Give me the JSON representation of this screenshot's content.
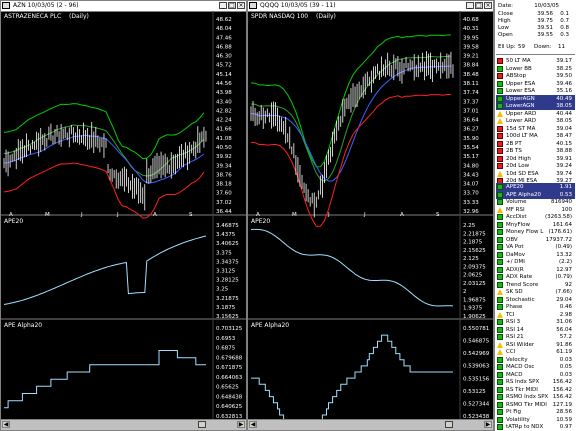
{
  "windows": [
    {
      "title": "AZN 10/03/05 (2 - 96)",
      "symbol_label": "ASTRAZENECA PLC",
      "period": "(Daily)",
      "months": [
        "A",
        "M",
        "J",
        "J",
        "A",
        "S"
      ],
      "price_ticks": [
        "48.62",
        "48.04",
        "47.46",
        "46.88",
        "46.30",
        "45.72",
        "45.14",
        "44.56",
        "43.98",
        "43.40",
        "42.82",
        "42.24",
        "41.66",
        "41.08",
        "40.50",
        "39.92",
        "39.34",
        "38.76",
        "38.18",
        "37.60",
        "37.02",
        "36.44"
      ],
      "panel2_label": "APE20",
      "panel2_ticks": [
        "3.46875",
        "3.4375",
        "3.40625",
        "3.375",
        "3.34375",
        "3.3125",
        "3.28125",
        "3.25",
        "3.21875",
        "3.1875",
        "3.15625"
      ],
      "panel3_label": "APE Alpha20",
      "panel3_ticks": [
        "0.703125",
        "0.6953",
        "0.6875",
        "0.679688",
        "0.671875",
        "0.664063",
        "0.65625",
        "0.648438",
        "0.640625",
        "0.632813"
      ]
    },
    {
      "title": "QQQQ 10/03/05 (39 - 11)",
      "symbol_label": "SPDR NASDAQ 100",
      "period": "(Daily)",
      "months": [
        "A",
        "M",
        "J",
        "J",
        "A",
        "S"
      ],
      "price_ticks": [
        "40.68",
        "40.31",
        "39.95",
        "39.58",
        "39.21",
        "38.84",
        "38.48",
        "38.11",
        "37.74",
        "37.37",
        "37.01",
        "36.64",
        "36.27",
        "35.90",
        "35.54",
        "35.17",
        "34.80",
        "34.43",
        "34.07",
        "33.70",
        "33.33",
        "32.96"
      ],
      "panel2_label": "APE20",
      "panel2_ticks": [
        "2.25",
        "2.21875",
        "2.1875",
        "2.15625",
        "2.125",
        "2.09375",
        "2.0625",
        "2.03125",
        "2",
        "1.96875",
        "1.9375",
        "1.90625"
      ],
      "panel3_label": "APE Alpha20",
      "panel3_ticks": [
        "0.550781",
        "0.546875",
        "0.542969",
        "0.539063",
        "0.535156",
        "0.53125",
        "0.527344",
        "0.523438"
      ]
    }
  ],
  "quote": {
    "date_label": "Date:",
    "date": "10/03/05",
    "rows": [
      {
        "k": "Close",
        "v": "39.56",
        "v2": "0.1"
      },
      {
        "k": "High",
        "v": "39.75",
        "v2": "0.7"
      },
      {
        "k": "Low",
        "v": "39.51",
        "v2": "0.8"
      },
      {
        "k": "Open",
        "v": "39.55",
        "v2": "0.3"
      }
    ],
    "ew_label": "Ell Up:",
    "ew_up": "59",
    "ew_down_label": "Down:",
    "ew_down": "11"
  },
  "signals_top": [
    {
      "icon": "red",
      "label": "50 LT MA",
      "value": "39.17"
    },
    {
      "icon": "green",
      "label": "Lower BB",
      "value": "38.25"
    },
    {
      "icon": "red",
      "label": "ABStop",
      "value": "39.50"
    },
    {
      "icon": "green",
      "label": "Upper ESA",
      "value": "39.46"
    },
    {
      "icon": "green",
      "label": "Lower ESA",
      "value": "35.16"
    },
    {
      "icon": "green",
      "label": "UpperAGN",
      "value": "40.49",
      "selected": true
    },
    {
      "icon": "green",
      "label": "LowerAGN",
      "value": "38.05",
      "selected": true
    },
    {
      "icon": "warn",
      "label": "Upper ARD",
      "value": "40.44"
    },
    {
      "icon": "warn",
      "label": "Lower ARD",
      "value": "38.05"
    },
    {
      "icon": "red",
      "label": "15d ST MA",
      "value": "39.04"
    },
    {
      "icon": "red",
      "label": "100d LT MA",
      "value": "38.47"
    },
    {
      "icon": "red",
      "label": "2B PT",
      "value": "40.15"
    },
    {
      "icon": "red",
      "label": "2B TS",
      "value": "38.88"
    },
    {
      "icon": "red",
      "label": "20d High",
      "value": "39.91"
    },
    {
      "icon": "red",
      "label": "20d Low",
      "value": "39.24"
    },
    {
      "icon": "warn",
      "label": "10d SD ESA",
      "value": "39.74"
    },
    {
      "icon": "red",
      "label": "20d MI ESA",
      "value": "39.27"
    }
  ],
  "signals_bottom": [
    {
      "icon": "green",
      "label": "APE20",
      "value": "1.91",
      "selected": true
    },
    {
      "icon": "green",
      "label": "APE Alpha20",
      "value": "0.53",
      "selected": true
    },
    {
      "icon": "green",
      "label": "Volume",
      "value": "816940"
    },
    {
      "icon": "warn",
      "label": "MF RSI",
      "value": "100"
    },
    {
      "icon": "green",
      "label": "AccDist",
      "value": "(3263.58)"
    },
    {
      "icon": "green",
      "label": "MnyFlow",
      "value": "161.64"
    },
    {
      "icon": "green",
      "label": "Money Flow L",
      "value": "(176.61)"
    },
    {
      "icon": "green",
      "label": "OBV",
      "value": "17937.72"
    },
    {
      "icon": "green",
      "label": "VA Pot",
      "value": "(0.49)"
    },
    {
      "icon": "green",
      "label": "DaMov",
      "value": "13.32"
    },
    {
      "icon": "green",
      "label": "+/ DMI",
      "value": "(2.2)"
    },
    {
      "icon": "green",
      "label": "ADX(R",
      "value": "12.97"
    },
    {
      "icon": "green",
      "label": "ADX Rate",
      "value": "(0.79)"
    },
    {
      "icon": "green",
      "label": "Trend Score",
      "value": "92"
    },
    {
      "icon": "warn",
      "label": "SK SD",
      "value": "(7.66)"
    },
    {
      "icon": "green",
      "label": "Stochastic",
      "value": "29.04"
    },
    {
      "icon": "green",
      "label": "Phase",
      "value": "0.46"
    },
    {
      "icon": "warn",
      "label": "TCI",
      "value": "2.98"
    },
    {
      "icon": "green",
      "label": "RSI 3",
      "value": "31.06"
    },
    {
      "icon": "green",
      "label": "RSI 14",
      "value": "56.04"
    },
    {
      "icon": "green",
      "label": "RSI 21",
      "value": "57.2"
    },
    {
      "icon": "warn",
      "label": "RSI Wilder",
      "value": "91.86"
    },
    {
      "icon": "warn",
      "label": "CCI",
      "value": "61.19"
    },
    {
      "icon": "green",
      "label": "Velocity",
      "value": "0.03"
    },
    {
      "icon": "green",
      "label": "MACD Osc",
      "value": "0.05"
    },
    {
      "icon": "green",
      "label": "MACD",
      "value": "0.03"
    },
    {
      "icon": "green",
      "label": "RS Indx SPX",
      "value": "156.42"
    },
    {
      "icon": "green",
      "label": "RS Tkr MIDI",
      "value": "156.42"
    },
    {
      "icon": "green",
      "label": "RSMO Indx SPX",
      "value": "156.42"
    },
    {
      "icon": "green",
      "label": "RSMO Tkr MIDI",
      "value": "127.19"
    },
    {
      "icon": "green",
      "label": "Pt Fig",
      "value": "28.56"
    },
    {
      "icon": "green",
      "label": "Volatility",
      "value": "10.59"
    },
    {
      "icon": "green",
      "label": "tATRp to NDX",
      "value": "0.97"
    }
  ],
  "colors": {
    "price_bars": "#ffffff",
    "upper_band": "#00d000",
    "lower_band": "#ff2020",
    "ma_blue": "#4060ff",
    "ma_green": "#30a030",
    "indicator": "#a0e0ff"
  }
}
